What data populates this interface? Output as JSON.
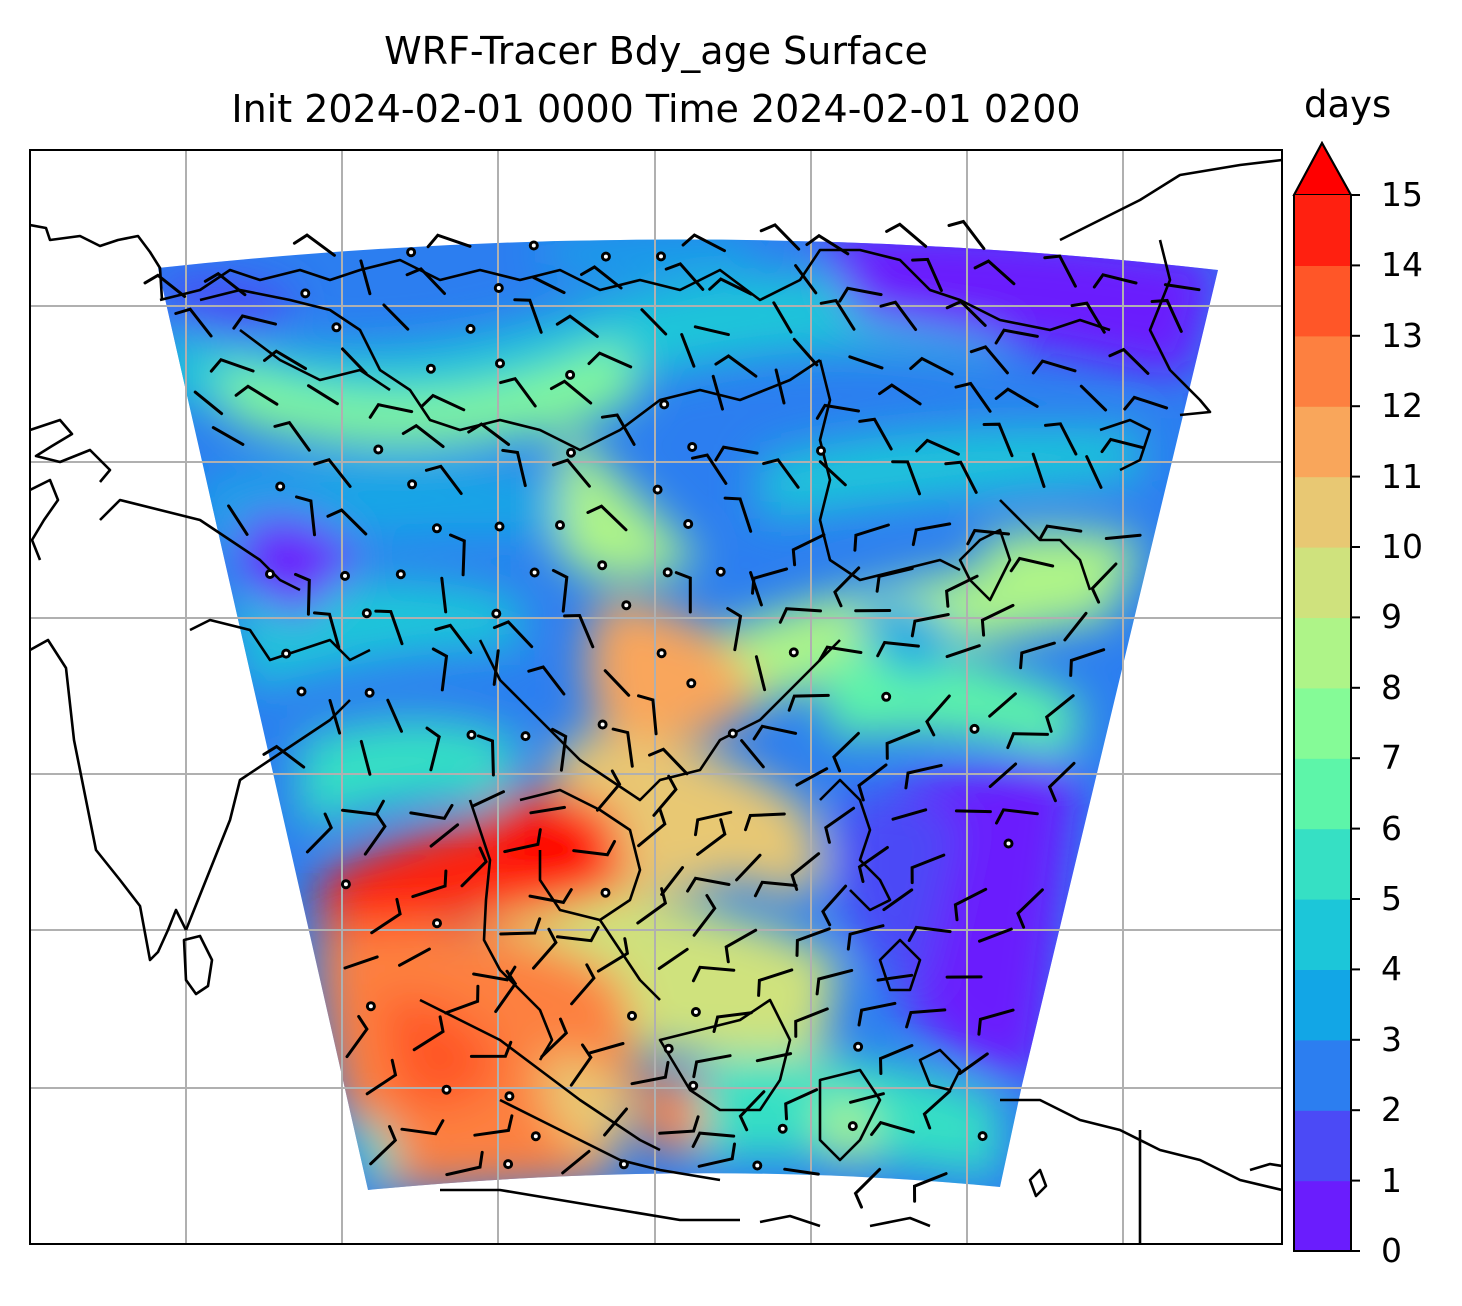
{
  "title": {
    "line1": "WRF-Tracer Bdy_age Surface",
    "line2": "Init 2024-02-01 0000 Time 2024-02-01 0200"
  },
  "colorbar": {
    "label": "days",
    "ticks": [
      "0",
      "1",
      "2",
      "3",
      "4",
      "5",
      "6",
      "7",
      "8",
      "9",
      "10",
      "11",
      "12",
      "13",
      "14",
      "15"
    ],
    "colors": [
      "#6a1dfd",
      "#4b4af6",
      "#2c7ef0",
      "#12a6e6",
      "#1cc6d9",
      "#36e0c4",
      "#5df5a9",
      "#85fb97",
      "#aef488",
      "#cfe27d",
      "#e8c873",
      "#f9a65b",
      "#fd8040",
      "#ff5628",
      "#ff2010"
    ],
    "extend_color": "#ff0000"
  },
  "map": {
    "field": "Bdy_age",
    "level": "Surface",
    "units": "days",
    "overlay": "wind barbs",
    "domain_background": "#2c7ef0"
  }
}
